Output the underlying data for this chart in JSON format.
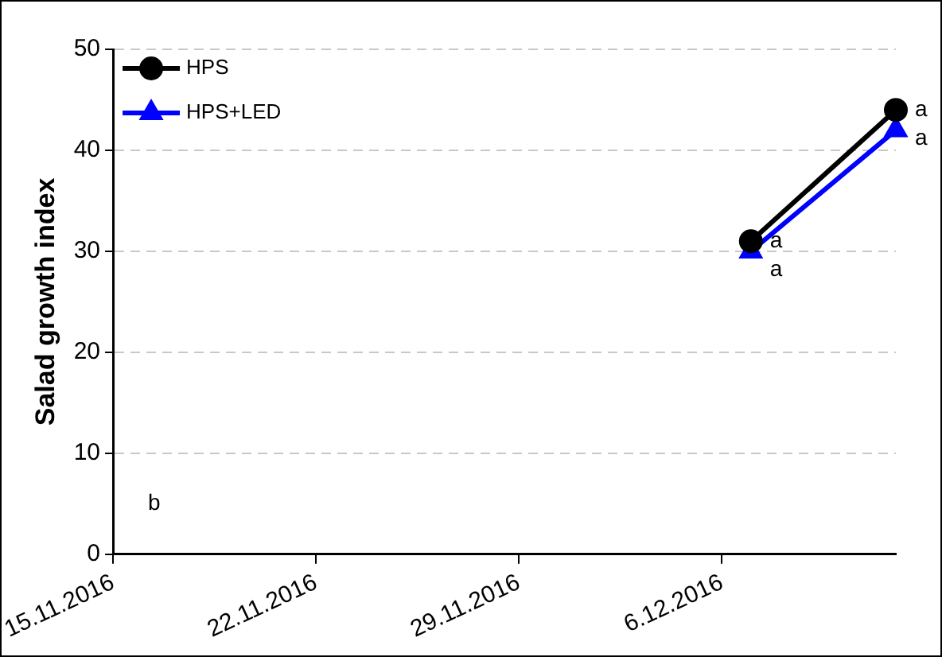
{
  "chart_data": {
    "type": "line",
    "ylabel": "Salad growth index",
    "x": [
      "2016-12-07",
      "2016-12-12"
    ],
    "series": [
      {
        "name": "HPS",
        "color": "#000000",
        "marker": "circle",
        "values": [
          31,
          44
        ]
      },
      {
        "name": "HPS+LED",
        "color": "#0000ff",
        "marker": "triangle",
        "values": [
          30,
          42
        ]
      }
    ],
    "xlim": [
      "2016-11-15",
      "2016-12-12"
    ],
    "xticks": [
      {
        "value": "2016-11-15",
        "label": "15.11.2016"
      },
      {
        "value": "2016-11-22",
        "label": "22.11.2016"
      },
      {
        "value": "2016-11-29",
        "label": "29.11.2016"
      },
      {
        "value": "2016-12-06",
        "label": "6.12.2016"
      }
    ],
    "ylim": [
      0,
      50
    ],
    "yticks": [
      0,
      10,
      20,
      30,
      40,
      50
    ],
    "grid": "y",
    "legend": "top left",
    "line_style": "solid",
    "annotations": [
      {
        "text": "a",
        "x": "2016-12-07",
        "y": 31
      },
      {
        "text": "a",
        "x": "2016-12-07",
        "y": 30
      },
      {
        "text": "a",
        "x": "2016-12-12",
        "y": 44
      },
      {
        "text": "a",
        "x": "2016-12-12",
        "y": 42
      },
      "b"
    ]
  }
}
